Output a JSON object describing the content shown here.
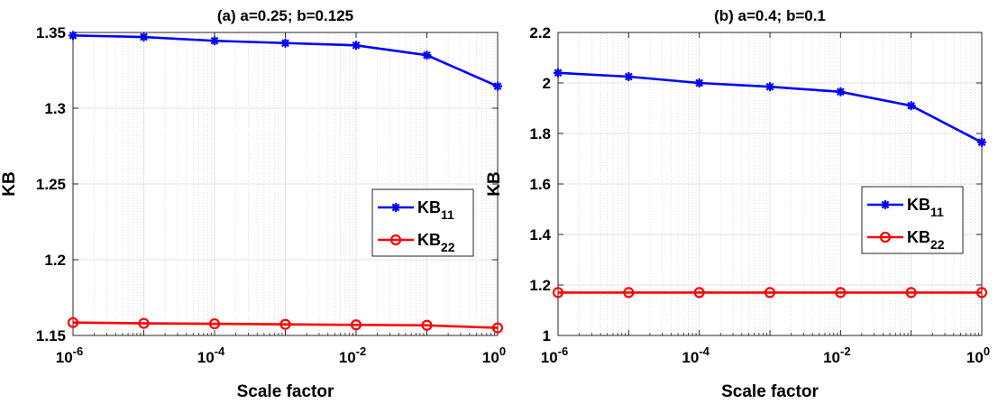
{
  "chart_data": [
    {
      "type": "line",
      "title": "(a) a=0.25; b=0.125",
      "xlabel": "Scale factor",
      "ylabel": "KB",
      "xscale": "log",
      "xlim": [
        1e-06,
        1
      ],
      "ylim": [
        1.15,
        1.35
      ],
      "xticks": [
        {
          "base": "10",
          "exp": "-6"
        },
        {
          "base": "10",
          "exp": "-4"
        },
        {
          "base": "10",
          "exp": "-2"
        },
        {
          "base": "10",
          "exp": "0"
        }
      ],
      "yticks": [
        "1.15",
        "1.2",
        "1.25",
        "1.3",
        "1.35"
      ],
      "grid": true,
      "legend_position": "right",
      "x": [
        1e-06,
        1e-05,
        0.0001,
        0.001,
        0.01,
        0.1,
        1
      ],
      "series": [
        {
          "name_main": "KB",
          "name_sub": "11",
          "color": "#0000ff",
          "marker": "asterisk",
          "values": [
            1.348,
            1.347,
            1.3445,
            1.343,
            1.3415,
            1.335,
            1.3145
          ]
        },
        {
          "name_main": "KB",
          "name_sub": "22",
          "color": "#ff0000",
          "marker": "circle",
          "values": [
            1.1585,
            1.158,
            1.1577,
            1.1573,
            1.157,
            1.1567,
            1.155
          ]
        }
      ]
    },
    {
      "type": "line",
      "title": "(b) a=0.4; b=0.1",
      "xlabel": "Scale factor",
      "ylabel": "KB",
      "xscale": "log",
      "xlim": [
        1e-06,
        1
      ],
      "ylim": [
        1,
        2.2
      ],
      "xticks": [
        {
          "base": "10",
          "exp": "-6"
        },
        {
          "base": "10",
          "exp": "-4"
        },
        {
          "base": "10",
          "exp": "-2"
        },
        {
          "base": "10",
          "exp": "0"
        }
      ],
      "yticks": [
        "1",
        "1.2",
        "1.4",
        "1.6",
        "1.8",
        "2",
        "2.2"
      ],
      "grid": true,
      "legend_position": "right",
      "x": [
        1e-06,
        1e-05,
        0.0001,
        0.001,
        0.01,
        0.1,
        1
      ],
      "series": [
        {
          "name_main": "KB",
          "name_sub": "11",
          "color": "#0000ff",
          "marker": "asterisk",
          "values": [
            2.04,
            2.025,
            2.0,
            1.985,
            1.965,
            1.91,
            1.765
          ]
        },
        {
          "name_main": "KB",
          "name_sub": "22",
          "color": "#ff0000",
          "marker": "circle",
          "values": [
            1.17,
            1.17,
            1.17,
            1.17,
            1.17,
            1.17,
            1.17
          ]
        }
      ]
    }
  ]
}
